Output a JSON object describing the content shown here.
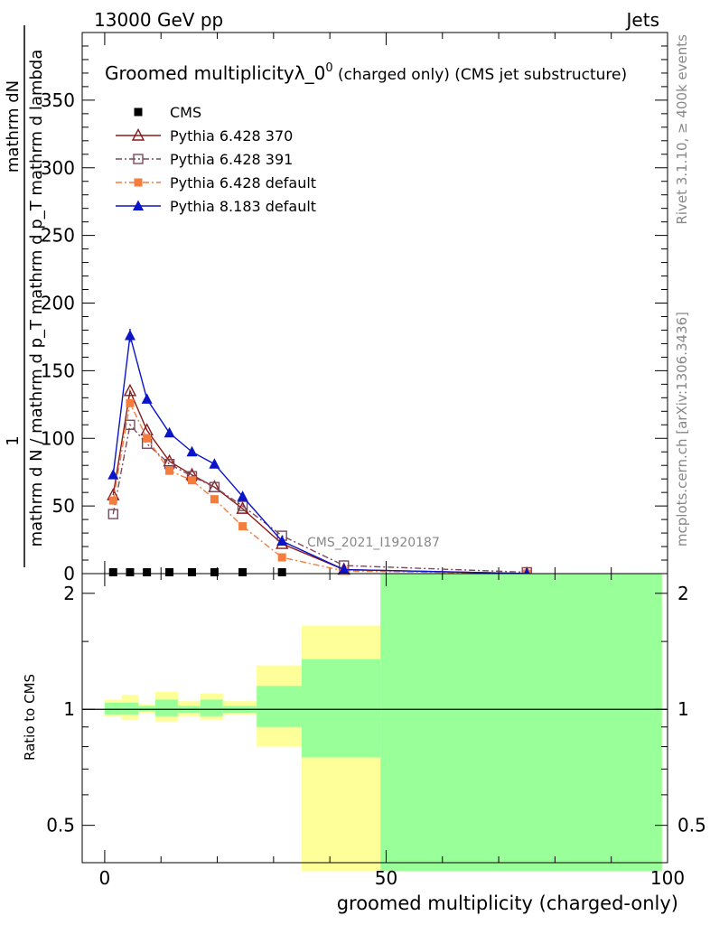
{
  "header": {
    "energy": "13000 GeV pp",
    "category": "Jets"
  },
  "side_labels": {
    "rivet": "Rivet 3.1.10, ≥ 400k events",
    "mcplots": "mcplots.cern.ch [arXiv:1306.3436]"
  },
  "watermark": "CMS_2021_I1920187",
  "colors": {
    "cms": "#000000",
    "p370": "#8b1a1a",
    "p391": "#7a4a5a",
    "p6def": "#f47c3c",
    "p8def": "#0a14c8",
    "band_yellow": "#ffff99",
    "band_green": "#99ff99"
  },
  "chart_data": [
    {
      "type": "line",
      "title_main": "Groomed multiplicityλ_0",
      "title_sup": "0",
      "title_suffix": " (charged only) (CMS jet substructure)",
      "xlabel": "groomed multiplicity (charged-only)",
      "ylabel_num": "1",
      "ylabel_num_rest": "mathrm dN",
      "ylabel_den_rest": "mathrm d N / mathrm d p_T mathrm d lambda",
      "ylabel_den_lead": "mathrm d N / mathrm d p_T mathrm d p_T mathrm d lambda",
      "xlim": [
        -4,
        100
      ],
      "ylim": [
        0,
        400
      ],
      "yticks": [
        0,
        50,
        100,
        150,
        200,
        250,
        300,
        350
      ],
      "series": [
        {
          "name": "CMS",
          "key": "cms",
          "marker": "square-filled",
          "line": "none",
          "x": [
            1.5,
            4.5,
            7.5,
            11.5,
            15.5,
            19.5,
            24.5,
            31.5
          ],
          "y": [
            1,
            1,
            1,
            1,
            1,
            1,
            1,
            1
          ]
        },
        {
          "name": "Pythia 6.428 370",
          "key": "p370",
          "marker": "triangle-open",
          "line": "solid",
          "x": [
            1.5,
            4.5,
            7.5,
            11.5,
            15.5,
            19.5,
            24.5,
            31.5,
            42.5,
            75
          ],
          "y": [
            58,
            135,
            106,
            83,
            73,
            64,
            48,
            22,
            3,
            0
          ]
        },
        {
          "name": "Pythia 6.428 391",
          "key": "p391",
          "marker": "square-open",
          "line": "dashdot",
          "x": [
            1.5,
            4.5,
            7.5,
            11.5,
            15.5,
            19.5,
            24.5,
            31.5,
            42.5,
            75
          ],
          "y": [
            44,
            110,
            96,
            81,
            72,
            64,
            50,
            28,
            6,
            1
          ]
        },
        {
          "name": "Pythia 6.428 default",
          "key": "p6def",
          "marker": "square-filled",
          "line": "dashdot",
          "x": [
            1.5,
            4.5,
            7.5,
            11.5,
            15.5,
            19.5,
            24.5,
            31.5,
            42.5,
            75
          ],
          "y": [
            54,
            126,
            100,
            76,
            69,
            55,
            35,
            12,
            2,
            0
          ]
        },
        {
          "name": "Pythia 8.183 default",
          "key": "p8def",
          "marker": "triangle-filled",
          "line": "solid",
          "x": [
            1.5,
            4.5,
            7.5,
            11.5,
            15.5,
            19.5,
            24.5,
            31.5,
            42.5,
            75
          ],
          "y": [
            73,
            176,
            129,
            104,
            90,
            81,
            57,
            24,
            3,
            0
          ]
        }
      ]
    },
    {
      "type": "area",
      "ylabel": "Ratio to CMS",
      "xlim": [
        -4,
        100
      ],
      "ylim": [
        0.4,
        2.25
      ],
      "yticks": [
        0.5,
        1,
        2
      ],
      "ytick_labels": [
        "0.5",
        "1",
        "2"
      ],
      "xticks": [
        0,
        50,
        100
      ],
      "xtick_labels": [
        "0",
        "50",
        "100"
      ],
      "reference": 1,
      "bins": [
        {
          "x0": 0,
          "x1": 3,
          "yellow": [
            0.96,
            1.06
          ],
          "green": [
            0.97,
            1.04
          ]
        },
        {
          "x0": 3,
          "x1": 6,
          "yellow": [
            0.94,
            1.09
          ],
          "green": [
            0.97,
            1.04
          ]
        },
        {
          "x0": 6,
          "x1": 9,
          "yellow": [
            0.98,
            1.03
          ],
          "green": [
            0.99,
            1.02
          ]
        },
        {
          "x0": 9,
          "x1": 13,
          "yellow": [
            0.93,
            1.11
          ],
          "green": [
            0.96,
            1.06
          ]
        },
        {
          "x0": 13,
          "x1": 17,
          "yellow": [
            0.96,
            1.05
          ],
          "green": [
            0.98,
            1.02
          ]
        },
        {
          "x0": 17,
          "x1": 21,
          "yellow": [
            0.94,
            1.1
          ],
          "green": [
            0.96,
            1.06
          ]
        },
        {
          "x0": 21,
          "x1": 27,
          "yellow": [
            0.97,
            1.05
          ],
          "green": [
            0.98,
            1.02
          ]
        },
        {
          "x0": 27,
          "x1": 35,
          "yellow": [
            0.8,
            1.3
          ],
          "green": [
            0.9,
            1.15
          ]
        },
        {
          "x0": 35,
          "x1": 49,
          "yellow": [
            0.38,
            1.65
          ],
          "green": [
            0.75,
            1.35
          ]
        },
        {
          "x0": 49,
          "x1": 99,
          "yellow": [
            0.38,
            2.25
          ],
          "green": [
            0.38,
            2.25
          ]
        }
      ]
    }
  ]
}
